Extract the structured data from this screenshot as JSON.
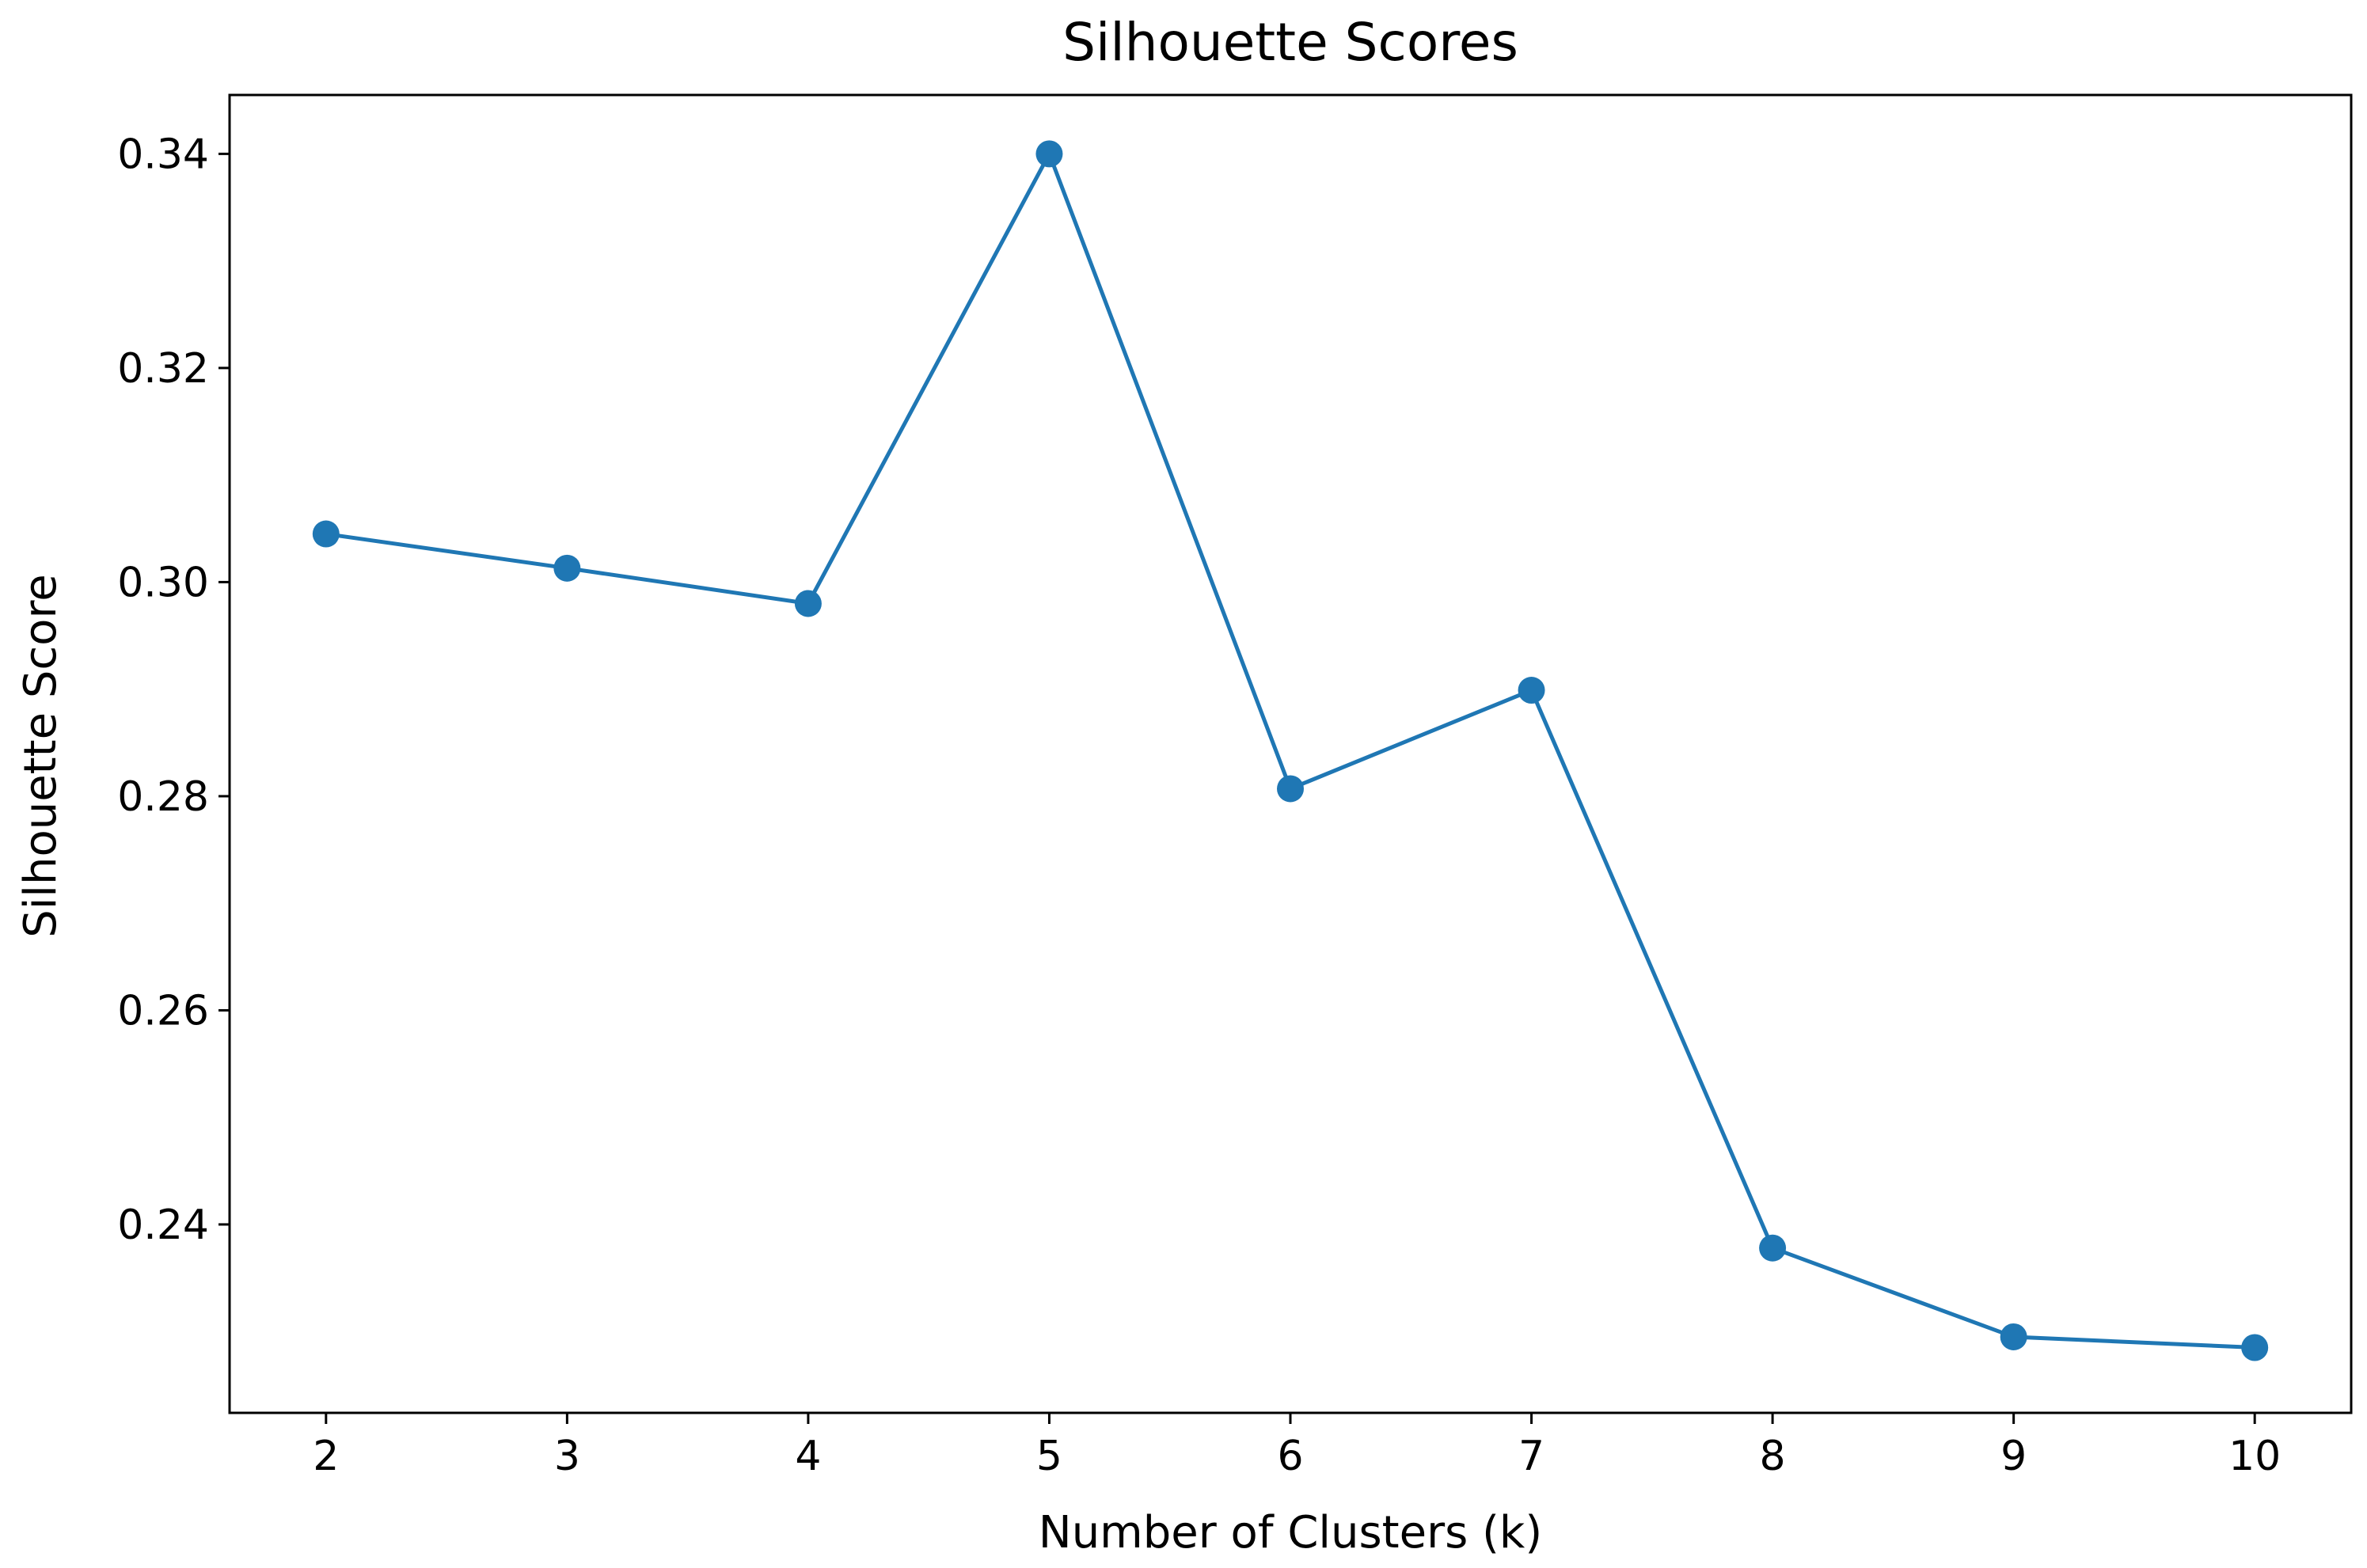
{
  "chart_data": {
    "type": "line",
    "title": "Silhouette Scores",
    "xlabel": "Number of Clusters (k)",
    "ylabel": "Silhouette Score",
    "x": [
      2,
      3,
      4,
      5,
      6,
      7,
      8,
      9,
      10
    ],
    "series": [
      {
        "values": [
          0.3045,
          0.3013,
          0.298,
          0.34,
          0.2807,
          0.2899,
          0.2378,
          0.2295,
          0.2285
        ],
        "color": "#1f77b4",
        "marker": "circle"
      }
    ],
    "xticks": [
      "2",
      "3",
      "4",
      "5",
      "6",
      "7",
      "8",
      "9",
      "10"
    ],
    "yticks": [
      "0.24",
      "0.26",
      "0.28",
      "0.30",
      "0.32",
      "0.34"
    ],
    "ytick_values": [
      0.24,
      0.26,
      0.28,
      0.3,
      0.32,
      0.34
    ],
    "xlim": [
      1.6,
      10.4
    ],
    "ylim": [
      0.2224,
      0.3455
    ],
    "grid": false,
    "legend": "none"
  }
}
